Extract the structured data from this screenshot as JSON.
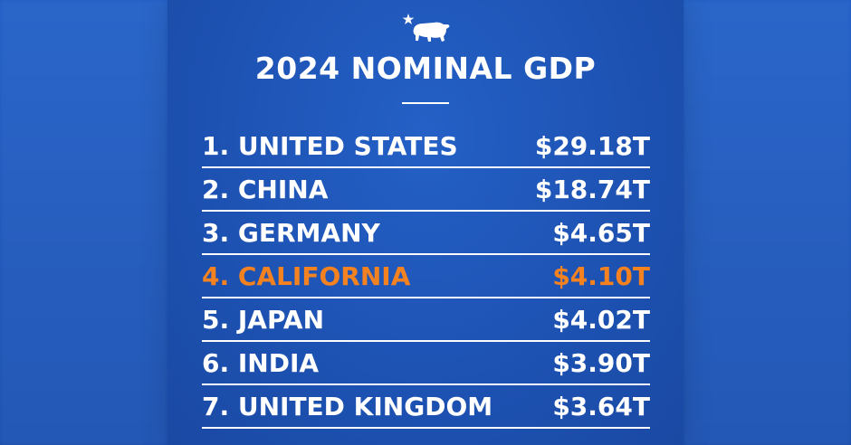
{
  "title": "2024 NOMINAL GDP",
  "colors": {
    "background": "#1c4fae",
    "text": "#ffffff",
    "highlight": "#f58220"
  },
  "logo": {
    "icon": "california-bear-star-icon"
  },
  "rankings": [
    {
      "label": "1. UNITED STATES",
      "value": "$29.18T",
      "highlight": false
    },
    {
      "label": "2. CHINA",
      "value": "$18.74T",
      "highlight": false
    },
    {
      "label": "3. GERMANY",
      "value": "$4.65T",
      "highlight": false
    },
    {
      "label": "4. CALIFORNIA",
      "value": "$4.10T",
      "highlight": true
    },
    {
      "label": "5. JAPAN",
      "value": "$4.02T",
      "highlight": false
    },
    {
      "label": "6. INDIA",
      "value": "$3.90T",
      "highlight": false
    },
    {
      "label": "7. UNITED KINGDOM",
      "value": "$3.64T",
      "highlight": false
    }
  ]
}
